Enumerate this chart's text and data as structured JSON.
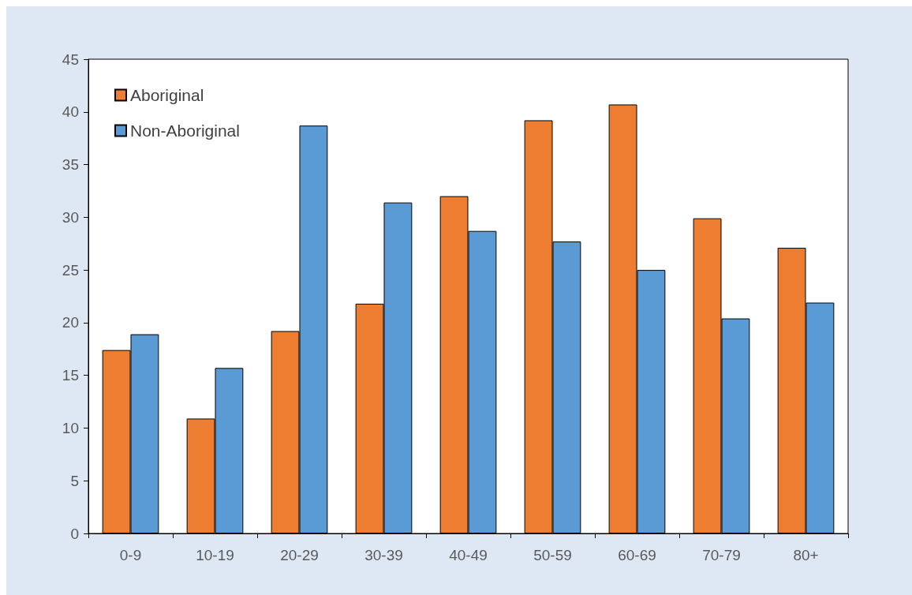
{
  "chart_data": {
    "type": "bar",
    "categories": [
      "0-9",
      "10-19",
      "20-29",
      "30-39",
      "40-49",
      "50-59",
      "60-69",
      "70-79",
      "80+"
    ],
    "series": [
      {
        "name": "Aboriginal",
        "color": "#ed7d31",
        "values": [
          17.4,
          10.9,
          19.2,
          21.8,
          32.0,
          39.2,
          40.7,
          29.9,
          27.1
        ]
      },
      {
        "name": "Non-Aboriginal",
        "color": "#5b9bd5",
        "values": [
          18.9,
          15.7,
          38.7,
          31.4,
          28.7,
          27.7,
          25.0,
          20.4,
          21.9
        ]
      }
    ],
    "ylim": [
      0,
      45
    ],
    "yticks": [
      0,
      5,
      10,
      15,
      20,
      25,
      30,
      35,
      40,
      45
    ],
    "grid": false,
    "legend": "top left"
  }
}
